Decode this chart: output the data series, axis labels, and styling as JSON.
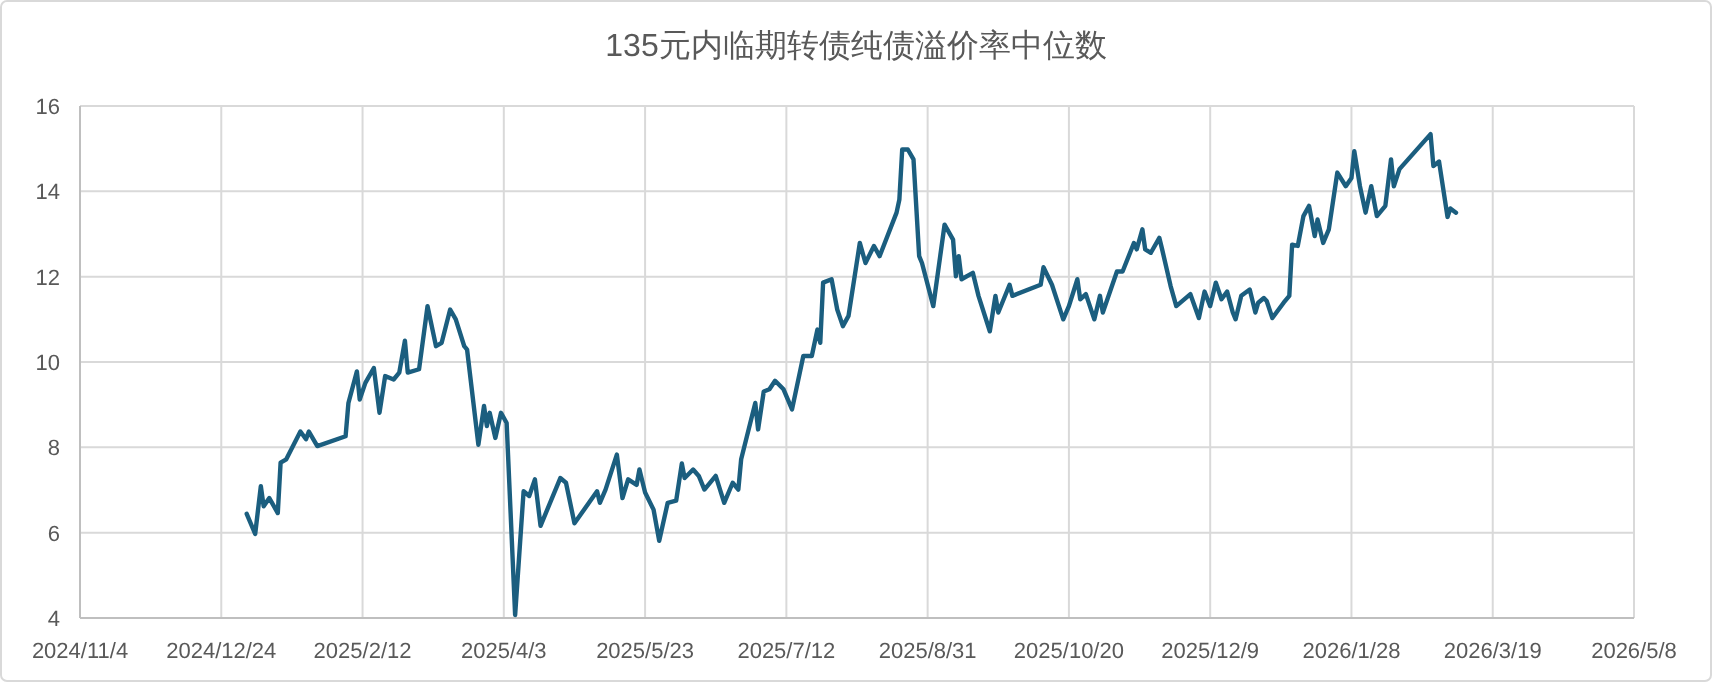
{
  "chart_data": {
    "type": "line",
    "title": "135元内临期转债纯债溢价率中位数",
    "x": [
      "2025-01-02",
      "2025-01-05",
      "2025-01-07",
      "2025-01-08",
      "2025-01-10",
      "2025-01-13",
      "2025-01-14",
      "2025-01-16",
      "2025-01-21",
      "2025-01-23",
      "2025-01-24",
      "2025-01-27",
      "2025-02-06",
      "2025-02-07",
      "2025-02-10",
      "2025-02-11",
      "2025-02-13",
      "2025-02-16",
      "2025-02-18",
      "2025-02-20",
      "2025-02-23",
      "2025-02-25",
      "2025-02-27",
      "2025-02-28",
      "2025-03-04",
      "2025-03-07",
      "2025-03-10",
      "2025-03-12",
      "2025-03-15",
      "2025-03-17",
      "2025-03-20",
      "2025-03-21",
      "2025-03-25",
      "2025-03-27",
      "2025-03-28",
      "2025-03-29",
      "2025-03-31",
      "2025-04-02",
      "2025-04-04",
      "2025-04-07",
      "2025-04-10",
      "2025-04-12",
      "2025-04-14",
      "2025-04-16",
      "2025-04-23",
      "2025-04-25",
      "2025-04-28",
      "2025-05-06",
      "2025-05-07",
      "2025-05-09",
      "2025-05-13",
      "2025-05-15",
      "2025-05-17",
      "2025-05-20",
      "2025-05-21",
      "2025-05-23",
      "2025-05-26",
      "2025-05-28",
      "2025-05-31",
      "2025-06-03",
      "2025-06-05",
      "2025-06-06",
      "2025-06-09",
      "2025-06-11",
      "2025-06-13",
      "2025-06-17",
      "2025-06-20",
      "2025-06-23",
      "2025-06-25",
      "2025-06-26",
      "2025-07-01",
      "2025-07-02",
      "2025-07-04",
      "2025-07-06",
      "2025-07-08",
      "2025-07-11",
      "2025-07-14",
      "2025-07-18",
      "2025-07-21",
      "2025-07-23",
      "2025-07-24",
      "2025-07-25",
      "2025-07-28",
      "2025-07-30",
      "2025-08-01",
      "2025-08-03",
      "2025-08-07",
      "2025-08-09",
      "2025-08-12",
      "2025-08-14",
      "2025-08-20",
      "2025-08-21",
      "2025-08-22",
      "2025-08-24",
      "2025-08-26",
      "2025-08-28",
      "2025-08-29",
      "2025-09-02",
      "2025-09-06",
      "2025-09-09",
      "2025-09-10",
      "2025-09-11",
      "2025-09-12",
      "2025-09-16",
      "2025-09-18",
      "2025-09-22",
      "2025-09-24",
      "2025-09-25",
      "2025-09-29",
      "2025-09-30",
      "2025-10-10",
      "2025-10-11",
      "2025-10-14",
      "2025-10-18",
      "2025-10-20",
      "2025-10-23",
      "2025-10-24",
      "2025-10-26",
      "2025-10-29",
      "2025-10-31",
      "2025-11-01",
      "2025-11-06",
      "2025-11-08",
      "2025-11-12",
      "2025-11-13",
      "2025-11-15",
      "2025-11-16",
      "2025-11-18",
      "2025-11-21",
      "2025-11-22",
      "2025-11-25",
      "2025-11-27",
      "2025-12-02",
      "2025-12-05",
      "2025-12-07",
      "2025-12-09",
      "2025-12-11",
      "2025-12-13",
      "2025-12-15",
      "2025-12-17",
      "2025-12-18",
      "2025-12-20",
      "2025-12-23",
      "2025-12-25",
      "2025-12-26",
      "2025-12-28",
      "2025-12-29",
      "2025-12-31",
      "2026-01-04",
      "2026-01-06",
      "2026-01-07",
      "2026-01-09",
      "2026-01-11",
      "2026-01-13",
      "2026-01-15",
      "2026-01-16",
      "2026-01-18",
      "2026-01-20",
      "2026-01-23",
      "2026-01-26",
      "2026-01-28",
      "2026-01-29",
      "2026-01-31",
      "2026-02-02",
      "2026-02-04",
      "2026-02-06",
      "2026-02-09",
      "2026-02-11",
      "2026-02-12",
      "2026-02-14",
      "2026-02-25",
      "2026-02-26",
      "2026-02-28",
      "2026-03-03",
      "2026-03-04",
      "2026-03-06"
    ],
    "series": [
      {
        "color": "#1b5e7f",
        "values": [
          6.44,
          5.97,
          7.09,
          6.62,
          6.81,
          6.46,
          7.64,
          7.72,
          8.37,
          8.19,
          8.37,
          8.03,
          8.26,
          9.04,
          9.78,
          9.12,
          9.51,
          9.86,
          8.81,
          9.67,
          9.59,
          9.75,
          10.5,
          9.75,
          9.83,
          11.31,
          10.37,
          10.45,
          11.23,
          11.0,
          10.37,
          10.29,
          8.06,
          8.97,
          8.5,
          8.81,
          8.22,
          8.81,
          8.57,
          4.07,
          6.97,
          6.86,
          7.25,
          6.16,
          7.28,
          7.17,
          6.22,
          6.97,
          6.7,
          7.01,
          7.83,
          6.81,
          7.25,
          7.12,
          7.48,
          6.94,
          6.54,
          5.81,
          6.7,
          6.75,
          7.62,
          7.28,
          7.48,
          7.33,
          7.01,
          7.33,
          6.7,
          7.17,
          7.01,
          7.72,
          9.04,
          8.42,
          9.31,
          9.36,
          9.56,
          9.36,
          8.89,
          10.14,
          10.14,
          10.76,
          10.45,
          11.86,
          11.94,
          11.23,
          10.84,
          11.08,
          12.79,
          12.32,
          12.72,
          12.48,
          13.5,
          13.81,
          14.98,
          14.98,
          14.75,
          12.48,
          12.32,
          11.31,
          13.22,
          12.87,
          12.01,
          12.48,
          11.94,
          12.09,
          11.55,
          10.72,
          11.55,
          11.16,
          11.81,
          11.55,
          11.81,
          12.22,
          11.81,
          11.0,
          11.31,
          11.94,
          11.47,
          11.59,
          11.0,
          11.55,
          11.16,
          12.12,
          12.12,
          12.79,
          12.64,
          13.11,
          12.64,
          12.56,
          12.91,
          12.64,
          11.78,
          11.31,
          11.59,
          11.03,
          11.65,
          11.31,
          11.86,
          11.47,
          11.65,
          11.16,
          11.0,
          11.55,
          11.7,
          11.16,
          11.39,
          11.5,
          11.43,
          11.03,
          11.39,
          11.55,
          12.75,
          12.72,
          13.42,
          13.66,
          12.95,
          13.34,
          12.79,
          13.11,
          14.44,
          14.12,
          14.31,
          14.94,
          14.12,
          13.5,
          14.12,
          13.42,
          13.66,
          14.75,
          14.12,
          14.52,
          15.34,
          14.59,
          14.7,
          13.4,
          13.6,
          13.5
        ]
      }
    ],
    "xlim": [
      "2024-11-04",
      "2026-05-08"
    ],
    "xticks": [
      {
        "value": "2024-11-04",
        "label": "2024/11/4"
      },
      {
        "value": "2024-12-24",
        "label": "2024/12/24"
      },
      {
        "value": "2025-02-12",
        "label": "2025/2/12"
      },
      {
        "value": "2025-04-03",
        "label": "2025/4/3"
      },
      {
        "value": "2025-05-23",
        "label": "2025/5/23"
      },
      {
        "value": "2025-07-12",
        "label": "2025/7/12"
      },
      {
        "value": "2025-08-31",
        "label": "2025/8/31"
      },
      {
        "value": "2025-10-20",
        "label": "2025/10/20"
      },
      {
        "value": "2025-12-09",
        "label": "2025/12/9"
      },
      {
        "value": "2026-01-28",
        "label": "2026/1/28"
      },
      {
        "value": "2026-03-19",
        "label": "2026/3/19"
      },
      {
        "value": "2026-05-08",
        "label": "2026/5/8"
      }
    ],
    "ylim": [
      4,
      16
    ],
    "yticks": [
      4,
      6,
      8,
      10,
      12,
      14,
      16
    ],
    "grid": true,
    "line_style": "solid",
    "marker": "none"
  }
}
